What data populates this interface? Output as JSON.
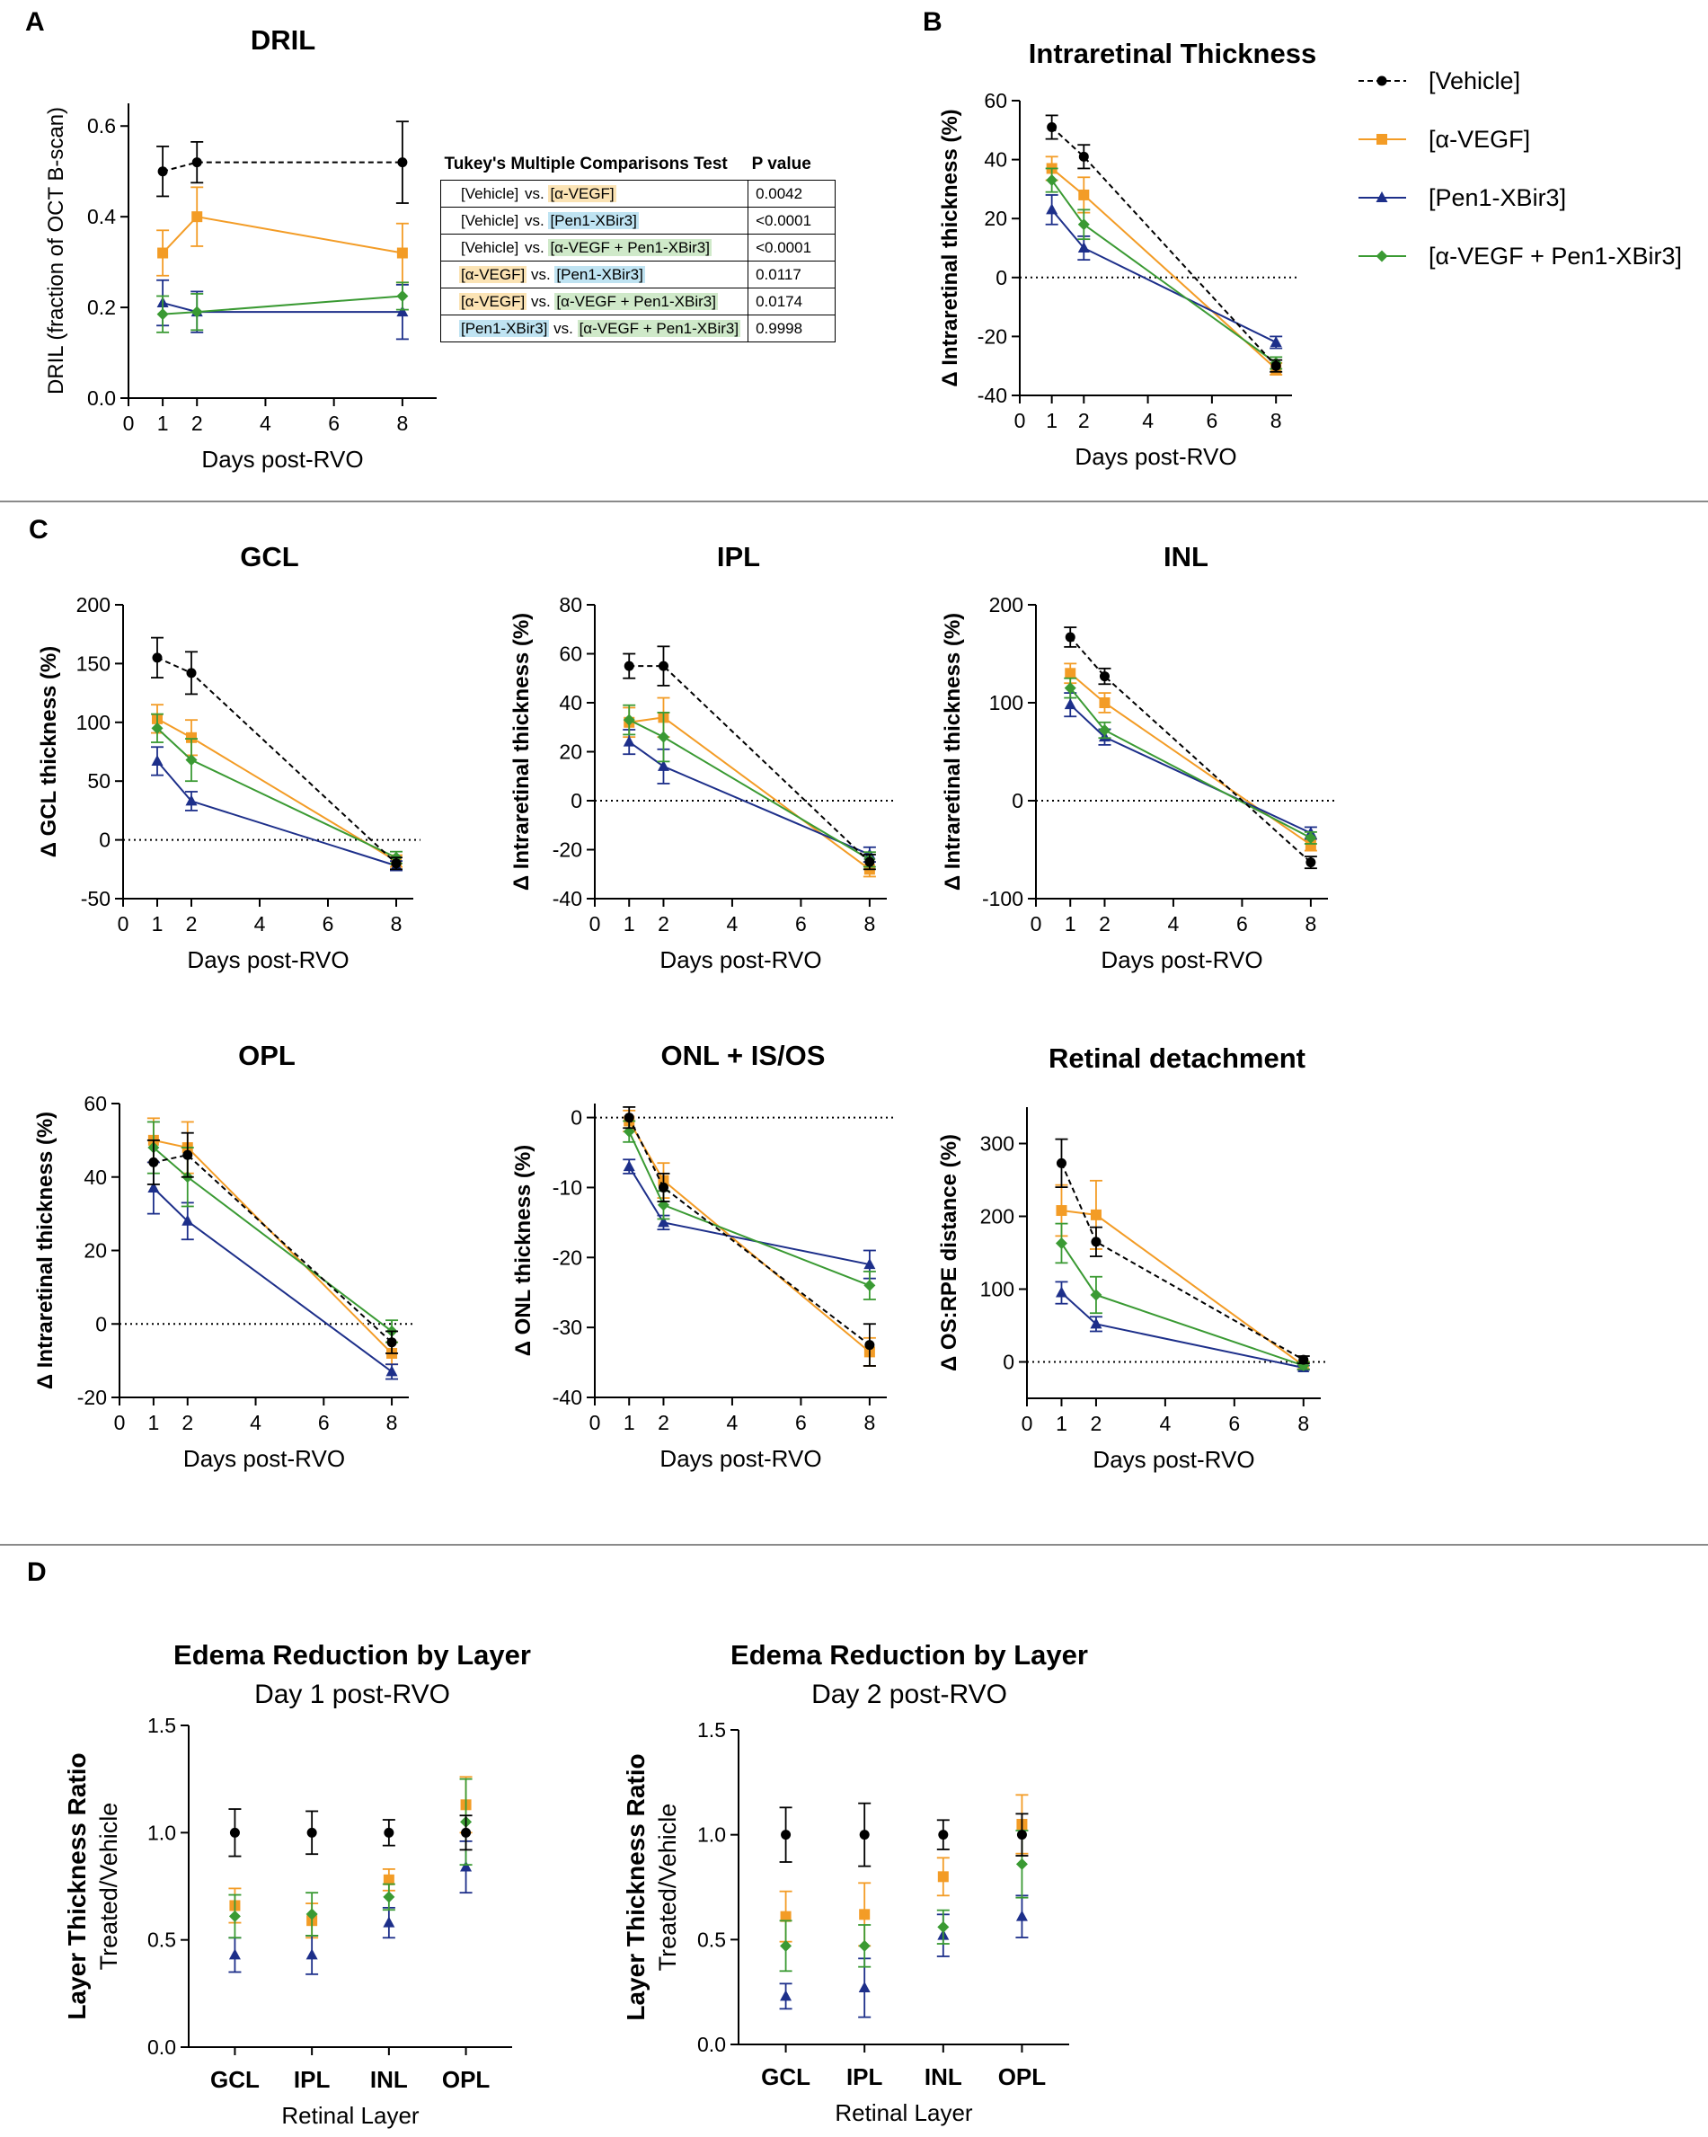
{
  "panel_labels": {
    "A": "A",
    "B": "B",
    "C": "C",
    "D": "D"
  },
  "groups": [
    "[Vehicle]",
    "[α-VEGF]",
    "[Pen1-XBir3]",
    "[α-VEGF + Pen1-XBir3]"
  ],
  "colors": {
    "Vehicle": "#000000",
    "aVEGF": "#f39c26",
    "Pen1": "#1d2f8a",
    "combo": "#3a9a33",
    "axis": "#000000"
  },
  "markers": {
    "Vehicle": "circle",
    "aVEGF": "square",
    "Pen1": "triangle",
    "combo": "diamond"
  },
  "legend": {
    "items": [
      "[Vehicle]",
      "[α-VEGF]",
      "[Pen1-XBir3]",
      "[α-VEGF + Pen1-XBir3]"
    ]
  },
  "stats_table": {
    "header": [
      "Tukey's Multiple Comparisons Test",
      "P value"
    ],
    "rows": [
      {
        "a": "[Vehicle]",
        "a_key": "v",
        "mid": " vs. ",
        "b": "[α-VEGF]",
        "b_key": "a",
        "p": "0.0042"
      },
      {
        "a": "[Vehicle]",
        "a_key": "v",
        "mid": " vs. ",
        "b": "[Pen1-XBir3]",
        "b_key": "p",
        "p": "<0.0001"
      },
      {
        "a": "[Vehicle]",
        "a_key": "v",
        "mid": " vs. ",
        "b": "[α-VEGF + Pen1-XBir3]",
        "b_key": "c",
        "p": "<0.0001"
      },
      {
        "a": "[α-VEGF]",
        "a_key": "a",
        "mid": " vs. ",
        "b": "[Pen1-XBir3]",
        "b_key": "p",
        "p": "0.0117"
      },
      {
        "a": "[α-VEGF]",
        "a_key": "a",
        "mid": " vs. ",
        "b": "[α-VEGF + Pen1-XBir3]",
        "b_key": "c",
        "p": "0.0174"
      },
      {
        "a": "[Pen1-XBir3]",
        "a_key": "p",
        "mid": " vs. ",
        "b": "[α-VEGF + Pen1-XBir3]",
        "b_key": "c",
        "p": "0.9998"
      }
    ]
  },
  "chart_data": [
    {
      "id": "dril",
      "type": "line",
      "title": "DRIL",
      "title_bold": true,
      "xlabel": "Days post-RVO",
      "ylabel": "DRIL (fraction of OCT B-scan)",
      "ylabel_bold": false,
      "x": [
        1,
        2,
        8
      ],
      "xlim": [
        0,
        9
      ],
      "xticks": [
        0,
        1,
        2,
        4,
        6,
        8
      ],
      "ylim": [
        0,
        0.65
      ],
      "yticks": [
        0,
        0.2,
        0.4,
        0.6
      ],
      "ytick_labels": [
        "0.0",
        "0.2",
        "0.4",
        "0.6"
      ],
      "zero_line": false,
      "series": [
        {
          "name": "[Vehicle]",
          "key": "Vehicle",
          "values": [
            0.5,
            0.52,
            0.52
          ],
          "err": [
            0.055,
            0.045,
            0.09
          ]
        },
        {
          "name": "[α-VEGF]",
          "key": "aVEGF",
          "values": [
            0.32,
            0.4,
            0.32
          ],
          "err": [
            0.05,
            0.065,
            0.065
          ]
        },
        {
          "name": "[Pen1-XBir3]",
          "key": "Pen1",
          "values": [
            0.21,
            0.19,
            0.19
          ],
          "err": [
            0.05,
            0.045,
            0.06
          ]
        },
        {
          "name": "[α-VEGF + Pen1-XBir3]",
          "key": "combo",
          "values": [
            0.185,
            0.19,
            0.225
          ],
          "err": [
            0.04,
            0.04,
            0.03
          ]
        }
      ]
    },
    {
      "id": "irt",
      "type": "line",
      "title": "Intraretinal Thickness",
      "title_bold": true,
      "xlabel": "Days post-RVO",
      "ylabel": "Δ Intraretinal thickness (%)",
      "ylabel_bold": true,
      "x": [
        1,
        2,
        8
      ],
      "xlim": [
        0,
        8.5
      ],
      "xticks": [
        0,
        1,
        2,
        4,
        6,
        8
      ],
      "ylim": [
        -40,
        60
      ],
      "yticks": [
        -40,
        -20,
        0,
        20,
        40,
        60
      ],
      "zero_line": true,
      "series": [
        {
          "name": "[Vehicle]",
          "key": "Vehicle",
          "values": [
            51,
            41,
            -30
          ],
          "err": [
            4,
            4,
            2
          ]
        },
        {
          "name": "[α-VEGF]",
          "key": "aVEGF",
          "values": [
            37,
            28,
            -31
          ],
          "err": [
            4,
            6,
            2
          ]
        },
        {
          "name": "[Pen1-XBir3]",
          "key": "Pen1",
          "values": [
            23,
            10,
            -22
          ],
          "err": [
            5,
            4,
            2
          ]
        },
        {
          "name": "[α-VEGF + Pen1-XBir3]",
          "key": "combo",
          "values": [
            33,
            18,
            -29
          ],
          "err": [
            4,
            5,
            2
          ]
        }
      ]
    },
    {
      "id": "gcl",
      "type": "line",
      "title": "GCL",
      "title_bold": true,
      "xlabel": "Days post-RVO",
      "ylabel": "Δ GCL thickness (%)",
      "ylabel_bold": true,
      "x": [
        1,
        2,
        8
      ],
      "xlim": [
        0,
        8.5
      ],
      "xticks": [
        0,
        1,
        2,
        4,
        6,
        8
      ],
      "ylim": [
        -50,
        200
      ],
      "yticks": [
        -50,
        0,
        50,
        100,
        150,
        200
      ],
      "zero_line": true,
      "series": [
        {
          "name": "[Vehicle]",
          "key": "Vehicle",
          "values": [
            155,
            142,
            -20
          ],
          "err": [
            17,
            18,
            5
          ]
        },
        {
          "name": "[α-VEGF]",
          "key": "aVEGF",
          "values": [
            103,
            87,
            -18
          ],
          "err": [
            12,
            15,
            5
          ]
        },
        {
          "name": "[Pen1-XBir3]",
          "key": "Pen1",
          "values": [
            67,
            33,
            -22
          ],
          "err": [
            12,
            8,
            4
          ]
        },
        {
          "name": "[α-VEGF + Pen1-XBir3]",
          "key": "combo",
          "values": [
            95,
            68,
            -15
          ],
          "err": [
            12,
            18,
            5
          ]
        }
      ]
    },
    {
      "id": "ipl",
      "type": "line",
      "title": "IPL",
      "title_bold": true,
      "xlabel": "Days post-RVO",
      "ylabel": "Δ Intraretinal thickness (%)",
      "ylabel_bold": true,
      "x": [
        1,
        2,
        8
      ],
      "xlim": [
        0,
        8.5
      ],
      "xticks": [
        0,
        1,
        2,
        4,
        6,
        8
      ],
      "ylim": [
        -40,
        80
      ],
      "yticks": [
        -40,
        -20,
        0,
        20,
        40,
        60,
        80
      ],
      "zero_line": true,
      "series": [
        {
          "name": "[Vehicle]",
          "key": "Vehicle",
          "values": [
            55,
            55,
            -25
          ],
          "err": [
            5,
            8,
            3
          ]
        },
        {
          "name": "[α-VEGF]",
          "key": "aVEGF",
          "values": [
            32,
            34,
            -28
          ],
          "err": [
            6,
            8,
            3
          ]
        },
        {
          "name": "[Pen1-XBir3]",
          "key": "Pen1",
          "values": [
            24,
            14,
            -22
          ],
          "err": [
            5,
            7,
            3
          ]
        },
        {
          "name": "[α-VEGF + Pen1-XBir3]",
          "key": "combo",
          "values": [
            33,
            26,
            -24
          ],
          "err": [
            6,
            10,
            3
          ]
        }
      ]
    },
    {
      "id": "inl",
      "type": "line",
      "title": "INL",
      "title_bold": true,
      "xlabel": "Days post-RVO",
      "ylabel": "Δ Intraretinal thickness (%)",
      "ylabel_bold": true,
      "x": [
        1,
        2,
        8
      ],
      "xlim": [
        0,
        8.5
      ],
      "xticks": [
        0,
        1,
        2,
        4,
        6,
        8
      ],
      "ylim": [
        -100,
        200
      ],
      "yticks": [
        -100,
        0,
        100,
        200
      ],
      "zero_line": true,
      "series": [
        {
          "name": "[Vehicle]",
          "key": "Vehicle",
          "values": [
            167,
            127,
            -63
          ],
          "err": [
            10,
            8,
            6
          ]
        },
        {
          "name": "[α-VEGF]",
          "key": "aVEGF",
          "values": [
            130,
            100,
            -45
          ],
          "err": [
            10,
            10,
            6
          ]
        },
        {
          "name": "[Pen1-XBir3]",
          "key": "Pen1",
          "values": [
            98,
            65,
            -33
          ],
          "err": [
            12,
            8,
            6
          ]
        },
        {
          "name": "[α-VEGF + Pen1-XBir3]",
          "key": "combo",
          "values": [
            115,
            72,
            -38
          ],
          "err": [
            10,
            8,
            6
          ]
        }
      ]
    },
    {
      "id": "opl",
      "type": "line",
      "title": "OPL",
      "title_bold": true,
      "xlabel": "Days post-RVO",
      "ylabel": "Δ Intraretinal thickness (%)",
      "ylabel_bold": true,
      "x": [
        1,
        2,
        8
      ],
      "xlim": [
        0,
        8.5
      ],
      "xticks": [
        0,
        1,
        2,
        4,
        6,
        8
      ],
      "ylim": [
        -20,
        60
      ],
      "yticks": [
        -20,
        0,
        20,
        40,
        60
      ],
      "zero_line": true,
      "series": [
        {
          "name": "[Vehicle]",
          "key": "Vehicle",
          "values": [
            44,
            46,
            -5
          ],
          "err": [
            6,
            6,
            3
          ]
        },
        {
          "name": "[α-VEGF]",
          "key": "aVEGF",
          "values": [
            50,
            48,
            -8
          ],
          "err": [
            6,
            7,
            3
          ]
        },
        {
          "name": "[Pen1-XBir3]",
          "key": "Pen1",
          "values": [
            37,
            28,
            -13
          ],
          "err": [
            7,
            5,
            2
          ]
        },
        {
          "name": "[α-VEGF + Pen1-XBir3]",
          "key": "combo",
          "values": [
            48,
            40,
            -2
          ],
          "err": [
            7,
            8,
            3
          ]
        }
      ]
    },
    {
      "id": "onl",
      "type": "line",
      "title": "ONL + IS/OS",
      "title_bold": true,
      "xlabel": "Days post-RVO",
      "ylabel": "Δ ONL thickness (%)",
      "ylabel_bold": true,
      "x": [
        1,
        2,
        8
      ],
      "xlim": [
        0,
        8.5
      ],
      "xticks": [
        0,
        1,
        2,
        4,
        6,
        8
      ],
      "ylim": [
        -40,
        2
      ],
      "yticks": [
        -40,
        -30,
        -20,
        -10,
        0
      ],
      "zero_line": true,
      "series": [
        {
          "name": "[Vehicle]",
          "key": "Vehicle",
          "values": [
            0,
            -10,
            -32.5
          ],
          "err": [
            1.5,
            2,
            3
          ]
        },
        {
          "name": "[α-VEGF]",
          "key": "aVEGF",
          "values": [
            -0.5,
            -9,
            -33.5
          ],
          "err": [
            1.5,
            2.5,
            2
          ]
        },
        {
          "name": "[Pen1-XBir3]",
          "key": "Pen1",
          "values": [
            -7,
            -15,
            -21
          ],
          "err": [
            1,
            1,
            2
          ]
        },
        {
          "name": "[α-VEGF + Pen1-XBir3]",
          "key": "combo",
          "values": [
            -2,
            -12.5,
            -24
          ],
          "err": [
            1.5,
            2,
            2
          ]
        }
      ]
    },
    {
      "id": "rd",
      "type": "line",
      "title": "Retinal detachment",
      "title_bold": true,
      "xlabel": "Days post-RVO",
      "ylabel": "Δ OS:RPE distance (%)",
      "ylabel_bold": true,
      "x": [
        1,
        2,
        8
      ],
      "xlim": [
        0,
        8.5
      ],
      "xticks": [
        0,
        1,
        2,
        4,
        6,
        8
      ],
      "ylim": [
        -50,
        350
      ],
      "yticks": [
        0,
        100,
        200,
        300
      ],
      "zero_line": true,
      "series": [
        {
          "name": "[Vehicle]",
          "key": "Vehicle",
          "values": [
            273,
            165,
            3
          ],
          "err": [
            33,
            20,
            5
          ]
        },
        {
          "name": "[α-VEGF]",
          "key": "aVEGF",
          "values": [
            208,
            202,
            -5
          ],
          "err": [
            35,
            47,
            5
          ]
        },
        {
          "name": "[Pen1-XBir3]",
          "key": "Pen1",
          "values": [
            95,
            52,
            -8
          ],
          "err": [
            15,
            10,
            3
          ]
        },
        {
          "name": "[α-VEGF + Pen1-XBir3]",
          "key": "combo",
          "values": [
            163,
            92,
            -5
          ],
          "err": [
            27,
            25,
            5
          ]
        }
      ]
    },
    {
      "id": "d1",
      "type": "scatter",
      "title": "Edema Reduction by Layer",
      "subtitle": "Day 1 post-RVO",
      "xlabel": "Retinal Layer",
      "ylabel": "Layer Thickness Ratio",
      "ylabel2": "Treated/Vehicle",
      "categories": [
        "GCL",
        "IPL",
        "INL",
        "OPL"
      ],
      "ylim": [
        0,
        1.5
      ],
      "yticks": [
        0,
        0.5,
        1.0,
        1.5
      ],
      "ytick_labels": [
        "0.0",
        "0.5",
        "1.0",
        "1.5"
      ],
      "series": [
        {
          "name": "[Vehicle]",
          "key": "Vehicle",
          "values": [
            1.0,
            1.0,
            1.0,
            1.0
          ],
          "err": [
            0.11,
            0.1,
            0.06,
            0.08
          ]
        },
        {
          "name": "[α-VEGF]",
          "key": "aVEGF",
          "values": [
            0.66,
            0.59,
            0.78,
            1.13
          ],
          "err": [
            0.08,
            0.08,
            0.05,
            0.13
          ]
        },
        {
          "name": "[Pen1-XBir3]",
          "key": "Pen1",
          "values": [
            0.43,
            0.43,
            0.58,
            0.84
          ],
          "err": [
            0.08,
            0.09,
            0.07,
            0.12
          ]
        },
        {
          "name": "[α-VEGF + Pen1-XBir3]",
          "key": "combo",
          "values": [
            0.61,
            0.62,
            0.7,
            1.05
          ],
          "err": [
            0.1,
            0.1,
            0.06,
            0.2
          ]
        }
      ]
    },
    {
      "id": "d2",
      "type": "scatter",
      "title": "Edema Reduction by Layer",
      "subtitle": "Day 2 post-RVO",
      "xlabel": "Retinal Layer",
      "ylabel": "Layer Thickness Ratio",
      "ylabel2": "Treated/Vehicle",
      "categories": [
        "GCL",
        "IPL",
        "INL",
        "OPL"
      ],
      "ylim": [
        0,
        1.5
      ],
      "yticks": [
        0,
        0.5,
        1.0,
        1.5
      ],
      "ytick_labels": [
        "0.0",
        "0.5",
        "1.0",
        "1.5"
      ],
      "series": [
        {
          "name": "[Vehicle]",
          "key": "Vehicle",
          "values": [
            1.0,
            1.0,
            1.0,
            1.0
          ],
          "err": [
            0.13,
            0.15,
            0.07,
            0.1
          ]
        },
        {
          "name": "[α-VEGF]",
          "key": "aVEGF",
          "values": [
            0.61,
            0.62,
            0.8,
            1.05
          ],
          "err": [
            0.12,
            0.15,
            0.09,
            0.14
          ]
        },
        {
          "name": "[Pen1-XBir3]",
          "key": "Pen1",
          "values": [
            0.23,
            0.27,
            0.52,
            0.61
          ],
          "err": [
            0.06,
            0.14,
            0.1,
            0.1
          ]
        },
        {
          "name": "[α-VEGF + Pen1-XBir3]",
          "key": "combo",
          "values": [
            0.47,
            0.47,
            0.56,
            0.86
          ],
          "err": [
            0.12,
            0.1,
            0.08,
            0.16
          ]
        }
      ]
    }
  ]
}
